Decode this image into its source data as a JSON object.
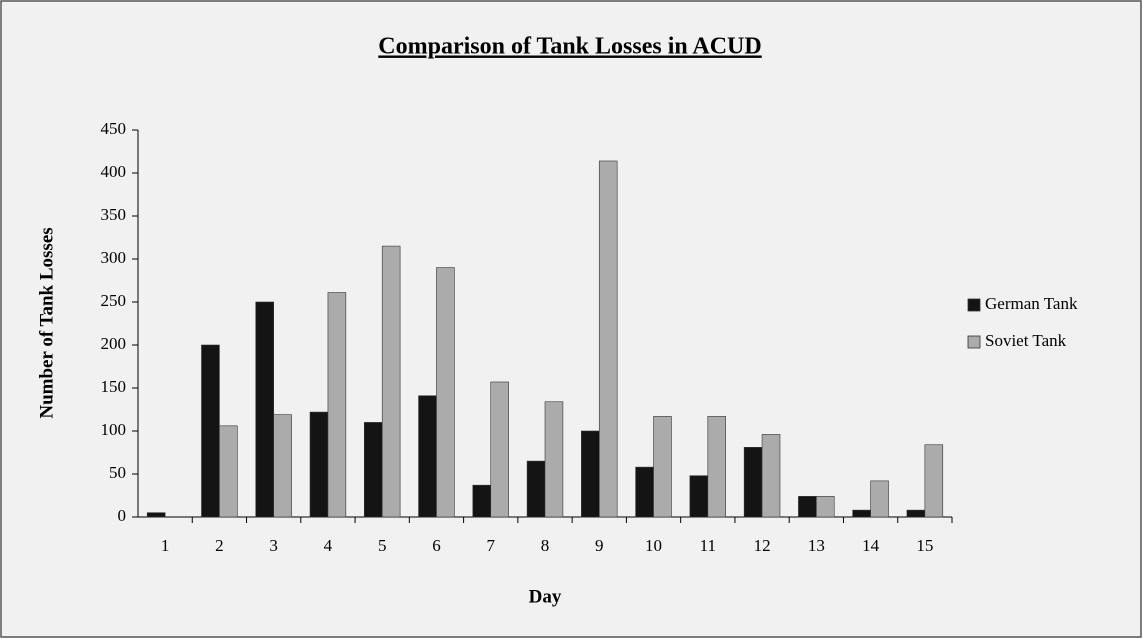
{
  "chart_data": {
    "type": "bar",
    "title": "Comparison of Tank Losses in ACUD",
    "x_label": "Day",
    "y_label": "Number of Tank Losses",
    "categories": [
      "1",
      "2",
      "3",
      "4",
      "5",
      "6",
      "7",
      "8",
      "9",
      "10",
      "11",
      "12",
      "13",
      "14",
      "15"
    ],
    "series": [
      {
        "name": "German Tank",
        "color": "#141414",
        "values": [
          5,
          200,
          250,
          122,
          110,
          141,
          37,
          65,
          100,
          58,
          48,
          81,
          24,
          8,
          8
        ]
      },
      {
        "name": "Soviet Tank",
        "color": "#ababab",
        "values": [
          0,
          106,
          119,
          261,
          315,
          290,
          157,
          134,
          414,
          117,
          117,
          96,
          24,
          42,
          84
        ]
      }
    ],
    "ylim": [
      0,
      450
    ],
    "yticks": [
      0,
      50,
      100,
      150,
      200,
      250,
      300,
      350,
      400,
      450
    ],
    "grid": false,
    "legend": "right"
  }
}
